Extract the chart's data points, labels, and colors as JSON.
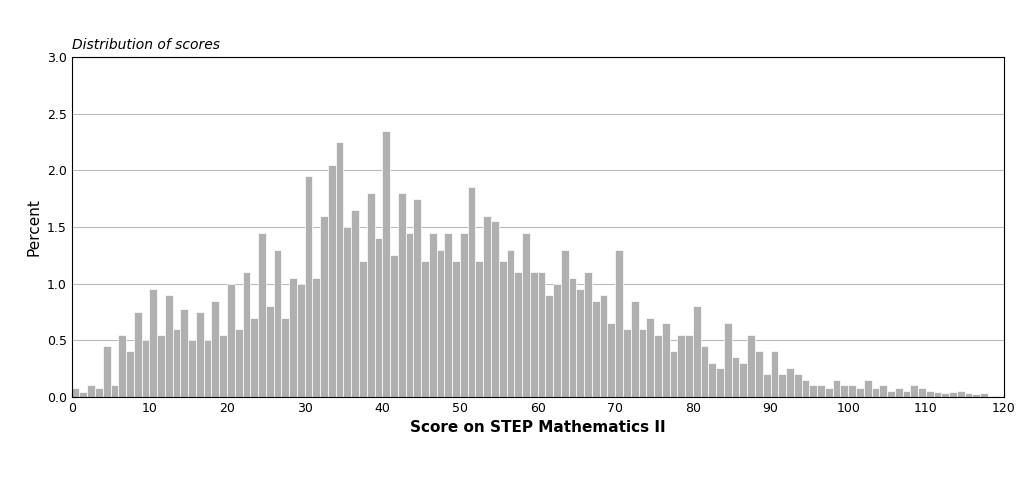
{
  "title": "Distribution of scores",
  "xlabel": "Score on STEP Mathematics II",
  "ylabel": "Percent",
  "xlim": [
    0,
    120
  ],
  "ylim": [
    0,
    3.0
  ],
  "yticks": [
    0.0,
    0.5,
    1.0,
    1.5,
    2.0,
    2.5,
    3.0
  ],
  "xticks": [
    0,
    10,
    20,
    30,
    40,
    50,
    60,
    70,
    80,
    90,
    100,
    110,
    120
  ],
  "bar_color": "#b0b0b0",
  "bar_edgecolor": "#ffffff",
  "background_color": "#ffffff",
  "title_fontstyle": "italic",
  "title_fontsize": 10,
  "xlabel_fontsize": 11,
  "xlabel_fontweight": "bold",
  "ylabel_fontsize": 11,
  "values": [
    0.08,
    0.04,
    0.1,
    0.08,
    0.45,
    0.1,
    0.55,
    0.4,
    0.75,
    0.5,
    0.95,
    0.55,
    0.9,
    0.6,
    0.78,
    0.5,
    0.75,
    0.5,
    0.85,
    0.55,
    1.0,
    0.6,
    1.1,
    0.7,
    1.45,
    0.8,
    1.3,
    0.7,
    1.05,
    1.0,
    1.95,
    1.05,
    1.6,
    2.05,
    2.25,
    1.5,
    1.65,
    1.2,
    1.8,
    1.4,
    2.35,
    1.25,
    1.8,
    1.45,
    1.75,
    1.2,
    1.45,
    1.3,
    1.45,
    1.2,
    1.45,
    1.85,
    1.2,
    1.6,
    1.55,
    1.2,
    1.3,
    1.1,
    1.45,
    1.1,
    1.1,
    0.9,
    1.0,
    1.3,
    1.05,
    0.95,
    1.1,
    0.85,
    0.9,
    0.65,
    1.3,
    0.6,
    0.85,
    0.6,
    0.7,
    0.55,
    0.65,
    0.4,
    0.55,
    0.55,
    0.8,
    0.45,
    0.3,
    0.25,
    0.65,
    0.35,
    0.3,
    0.55,
    0.4,
    0.2,
    0.4,
    0.2,
    0.25,
    0.2,
    0.15,
    0.1,
    0.1,
    0.08,
    0.15,
    0.1,
    0.1,
    0.08,
    0.15,
    0.08,
    0.1,
    0.05,
    0.08,
    0.05,
    0.1,
    0.08,
    0.05,
    0.04,
    0.03,
    0.04,
    0.05,
    0.03,
    0.02,
    0.03,
    0.01,
    0.01,
    0.01
  ]
}
